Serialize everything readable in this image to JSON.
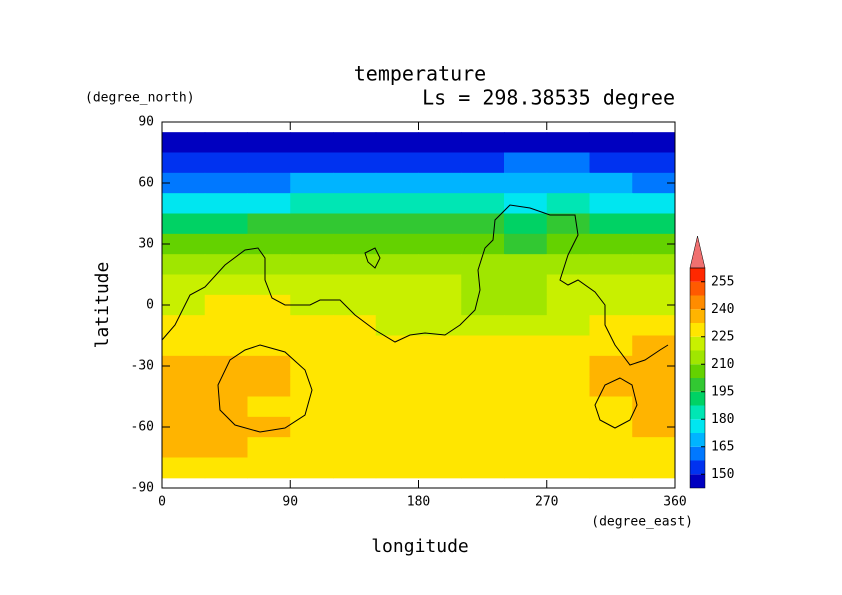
{
  "chart_data": {
    "type": "contour",
    "title": "temperature",
    "subtitle": "Ls = 298.38535 degree",
    "x_label": "longitude",
    "y_label": "latitude",
    "x_units": "(degree_east)",
    "y_units": "(degree_north)",
    "x": [
      15,
      45,
      75,
      105,
      135,
      165,
      195,
      225,
      255,
      285,
      315,
      345
    ],
    "y": [
      80,
      70,
      60,
      50,
      40,
      30,
      20,
      10,
      0,
      -10,
      -20,
      -30,
      -40,
      -50,
      -60,
      -70,
      -80
    ],
    "values": [
      [
        145,
        145,
        145,
        145,
        145,
        145,
        145,
        145,
        145,
        145,
        145,
        145
      ],
      [
        150,
        150,
        150,
        150,
        150,
        150,
        152,
        155,
        160,
        158,
        152,
        150
      ],
      [
        158,
        160,
        158,
        165,
        168,
        165,
        165,
        170,
        172,
        170,
        165,
        160
      ],
      [
        175,
        178,
        175,
        180,
        182,
        180,
        180,
        182,
        178,
        180,
        178,
        175
      ],
      [
        190,
        192,
        195,
        195,
        198,
        198,
        195,
        195,
        192,
        195,
        192,
        190
      ],
      [
        205,
        205,
        205,
        205,
        208,
        208,
        205,
        205,
        202,
        205,
        205,
        205
      ],
      [
        212,
        212,
        212,
        212,
        214,
        214,
        212,
        212,
        210,
        212,
        212,
        212
      ],
      [
        218,
        220,
        220,
        220,
        220,
        220,
        218,
        215,
        215,
        218,
        218,
        218
      ],
      [
        222,
        225,
        225,
        222,
        222,
        220,
        218,
        215,
        215,
        218,
        220,
        222
      ],
      [
        228,
        228,
        228,
        228,
        226,
        222,
        220,
        218,
        220,
        222,
        225,
        228
      ],
      [
        230,
        230,
        230,
        230,
        230,
        228,
        228,
        228,
        228,
        228,
        232,
        235
      ],
      [
        238,
        236,
        234,
        232,
        230,
        230,
        230,
        230,
        230,
        230,
        236,
        238
      ],
      [
        236,
        234,
        234,
        232,
        230,
        230,
        228,
        230,
        230,
        230,
        234,
        236
      ],
      [
        236,
        234,
        232,
        230,
        230,
        230,
        230,
        230,
        230,
        230,
        230,
        236
      ],
      [
        236,
        236,
        234,
        230,
        230,
        230,
        230,
        230,
        230,
        230,
        232,
        236
      ],
      [
        236,
        234,
        230,
        230,
        230,
        230,
        230,
        230,
        230,
        230,
        230,
        232
      ],
      [
        230,
        230,
        230,
        230,
        230,
        230,
        230,
        230,
        230,
        230,
        230,
        230
      ]
    ],
    "xlim": [
      0,
      360
    ],
    "ylim": [
      -90,
      90
    ],
    "xticks": [
      0,
      90,
      180,
      270,
      360
    ],
    "yticks": [
      -90,
      -60,
      -30,
      0,
      30,
      60,
      90
    ],
    "levels": [
      142.5,
      150,
      157.5,
      165,
      172.5,
      180,
      187.5,
      195,
      202.5,
      210,
      217.5,
      225,
      232.5,
      240,
      247.5,
      255,
      262.5
    ],
    "colors": [
      "#0000c0",
      "#0032f0",
      "#0078ff",
      "#00b4ff",
      "#00e6f0",
      "#00e6b4",
      "#00d264",
      "#32c832",
      "#64d200",
      "#a0e600",
      "#c8f000",
      "#ffe600",
      "#ffb400",
      "#ff8c00",
      "#ff5a00",
      "#ff2800"
    ],
    "extend_color": "#f07070",
    "colorbar_ticks": [
      150,
      165,
      180,
      195,
      210,
      225,
      240,
      255
    ]
  }
}
